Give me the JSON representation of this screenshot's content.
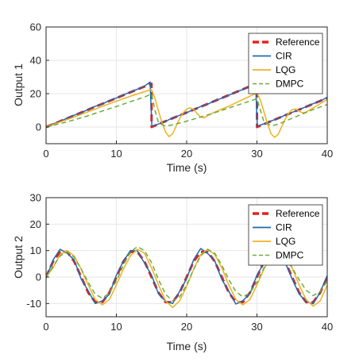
{
  "colors": {
    "Reference": "#e8201c",
    "CIR": "#1f68b0",
    "LQG": "#eeb220",
    "DMPC": "#6cad3c",
    "axis": "#262626",
    "grid": "#e6e6e6"
  },
  "chart_data": [
    {
      "type": "line",
      "xlabel": "Time (s)",
      "ylabel": "Output 1",
      "xlim": [
        0,
        40
      ],
      "ylim": [
        -10,
        60
      ],
      "xticks": [
        0,
        10,
        20,
        30,
        40
      ],
      "yticks": [
        0,
        20,
        40,
        60
      ],
      "grid": true,
      "legend_position": "top-right",
      "legend": [
        "Reference",
        "CIR",
        "LQG",
        "DMPC"
      ],
      "series": [
        {
          "name": "Reference",
          "style": "dashed-thick",
          "x": [
            0,
            1,
            3,
            5,
            7,
            9,
            11,
            13,
            15,
            15.01,
            17,
            19,
            21,
            23,
            25,
            27,
            29,
            30,
            30.01,
            32,
            34,
            36,
            38,
            40
          ],
          "y": [
            0,
            1.7,
            5.2,
            8.7,
            12.2,
            15.6,
            19.1,
            22.6,
            26,
            0,
            3.5,
            7,
            10.4,
            13.9,
            17.4,
            20.9,
            24.4,
            26,
            0,
            3.5,
            7,
            10.4,
            13.9,
            17.4
          ]
        },
        {
          "name": "CIR",
          "style": "solid",
          "x": [
            0,
            1,
            2,
            3,
            4,
            5,
            6,
            7,
            8,
            9,
            10,
            11,
            12,
            13,
            14,
            14.8,
            15.05,
            16,
            17,
            18,
            19,
            20,
            21,
            22,
            23,
            24,
            25,
            26,
            27,
            28,
            29,
            29.8,
            30.05,
            31,
            32,
            33,
            34,
            35,
            36,
            37,
            38,
            39,
            40
          ],
          "y": [
            0,
            1.9,
            3.3,
            5.4,
            7.1,
            8.5,
            10.6,
            12.4,
            13.8,
            15.9,
            17.4,
            19.3,
            21,
            22.7,
            24.5,
            27,
            0.5,
            1.8,
            3.4,
            5.5,
            7,
            8.6,
            10.5,
            12.3,
            13.7,
            15.8,
            17.3,
            19.1,
            21,
            22.5,
            24.6,
            26.5,
            0.5,
            1.9,
            3.6,
            5.2,
            7.1,
            8.8,
            10.4,
            12.2,
            14,
            15.6,
            17.8
          ]
        },
        {
          "name": "LQG",
          "style": "solid",
          "x": [
            0,
            2,
            4,
            6,
            8,
            10,
            12,
            14,
            15,
            15.5,
            16,
            16.5,
            17,
            17.5,
            18,
            18.5,
            19,
            19.5,
            20,
            20.5,
            21,
            21.5,
            22,
            22.5,
            23,
            24,
            26,
            28,
            29,
            30,
            30.5,
            31,
            31.5,
            32,
            32.5,
            33,
            33.5,
            34,
            34.5,
            35,
            35.5,
            36,
            36.5,
            37,
            38,
            39,
            40
          ],
          "y": [
            0,
            3,
            6,
            9.2,
            12.4,
            15.5,
            18.5,
            21.2,
            22.5,
            17,
            9.5,
            2.5,
            -3,
            -5.8,
            -4,
            0.5,
            5,
            8.5,
            10.8,
            11.5,
            10.5,
            8,
            6,
            5.5,
            6.8,
            9,
            12.5,
            16.5,
            18.5,
            20.5,
            16,
            9,
            2,
            -4,
            -6.2,
            -4.5,
            0,
            4.5,
            8.2,
            10.5,
            10.8,
            9.5,
            8.5,
            9,
            11.5,
            14,
            16.5
          ]
        },
        {
          "name": "DMPC",
          "style": "dashed",
          "x": [
            0,
            2,
            4,
            6,
            8,
            10,
            12,
            14,
            15,
            15.5,
            16,
            17,
            18,
            20,
            22,
            24,
            26,
            28,
            30,
            30.5,
            31,
            32,
            33,
            34,
            36,
            38,
            40
          ],
          "y": [
            0,
            2,
            4.3,
            6.8,
            9.6,
            12.3,
            15.2,
            18,
            19.8,
            10,
            2.5,
            0.5,
            1.3,
            3.5,
            6,
            8.6,
            11.4,
            14.2,
            17,
            10,
            3,
            0.8,
            1.5,
            3.5,
            7,
            10.5,
            13.5
          ]
        }
      ]
    },
    {
      "type": "line",
      "xlabel": "Time (s)",
      "ylabel": "Output 2",
      "xlim": [
        0,
        40
      ],
      "ylim": [
        -15,
        30
      ],
      "xticks": [
        0,
        10,
        20,
        30,
        40
      ],
      "yticks": [
        -10,
        0,
        10,
        20,
        30
      ],
      "grid": true,
      "legend_position": "top-right",
      "legend": [
        "Reference",
        "CIR",
        "LQG",
        "DMPC"
      ],
      "series": [
        {
          "name": "Reference",
          "style": "dashed-thick",
          "x": [
            0,
            1,
            2,
            3,
            4,
            5,
            6,
            7,
            8,
            9,
            10,
            11,
            12,
            13,
            14,
            15,
            16,
            17,
            18,
            19,
            20,
            21,
            22,
            23,
            24,
            25,
            26,
            27,
            28,
            29,
            30,
            31,
            32,
            33,
            34,
            35,
            36,
            37,
            38,
            39,
            40
          ],
          "y": [
            0,
            5.9,
            9.5,
            9.5,
            5.9,
            0,
            -5.9,
            -9.5,
            -9.5,
            -5.9,
            0,
            5.9,
            9.5,
            9.5,
            5.9,
            0,
            -5.9,
            -9.5,
            -9.5,
            -5.9,
            0,
            5.9,
            9.5,
            9.5,
            5.9,
            0,
            -5.9,
            -9.5,
            -9.5,
            -5.9,
            0,
            5.9,
            9.5,
            9.5,
            5.9,
            0,
            -5.9,
            -9.5,
            -9.5,
            -5.9,
            0
          ]
        },
        {
          "name": "CIR",
          "style": "solid",
          "x": [
            0,
            1,
            2,
            3,
            4,
            5,
            6,
            7,
            8,
            9,
            10,
            11,
            12,
            13,
            14,
            15,
            16,
            17,
            18,
            19,
            20,
            21,
            22,
            23,
            24,
            25,
            26,
            27,
            28,
            29,
            30,
            31,
            32,
            33,
            34,
            35,
            36,
            37,
            38,
            39,
            40
          ],
          "y": [
            -0.5,
            6.5,
            10.5,
            9,
            6.5,
            -0.8,
            -5.2,
            -10,
            -9,
            -6.5,
            0.7,
            6,
            10,
            9.9,
            5.3,
            0.8,
            -6.4,
            -9.1,
            -10,
            -5.4,
            -0.6,
            6.6,
            10.8,
            8.9,
            6.1,
            -0.9,
            -5.4,
            -10.2,
            -8.9,
            -6.3,
            0.8,
            5.3,
            9.2,
            10.3,
            5.6,
            -0.7,
            -6.4,
            -9.3,
            -10.1,
            -5.7,
            0.6
          ]
        },
        {
          "name": "LQG",
          "style": "solid",
          "x": [
            0,
            1,
            2,
            3,
            4,
            5,
            6,
            7,
            8,
            9,
            10,
            11,
            12,
            13,
            14,
            15,
            16,
            17,
            18,
            19,
            20,
            21,
            22,
            23,
            24,
            25,
            26,
            27,
            28,
            29,
            30,
            31,
            32,
            33,
            34,
            35,
            36,
            37,
            38,
            39,
            40
          ],
          "y": [
            0,
            3.5,
            8.5,
            10,
            8,
            3,
            -3,
            -8.5,
            -10.5,
            -8.5,
            -3,
            3,
            8,
            10.5,
            9,
            3.5,
            -3,
            -9,
            -11.5,
            -9,
            -3.5,
            3,
            8.5,
            10.5,
            8.5,
            3.5,
            -3,
            -8.5,
            -10.5,
            -8.5,
            -3,
            3,
            8,
            10.5,
            9,
            3.5,
            -3,
            -8.5,
            -11,
            -9,
            -3
          ]
        },
        {
          "name": "DMPC",
          "style": "dashed",
          "x": [
            0,
            1,
            2,
            3,
            4,
            5,
            6,
            7,
            8,
            9,
            10,
            11,
            12,
            13,
            14,
            15,
            16,
            17,
            18,
            19,
            20,
            21,
            22,
            23,
            24,
            25,
            26,
            27,
            28,
            29,
            30,
            31,
            32,
            33,
            34,
            35,
            36,
            37,
            38,
            39,
            40
          ],
          "y": [
            0,
            4,
            8,
            9.5,
            7.5,
            3,
            -2,
            -6.5,
            -8,
            -6,
            -1.5,
            4.5,
            9.5,
            11.5,
            10,
            5.5,
            -1,
            -6.5,
            -9,
            -7.5,
            -3,
            3,
            8,
            10.5,
            9,
            4.5,
            -1,
            -5.5,
            -7.5,
            -6,
            -2,
            3.5,
            7.5,
            9,
            7.5,
            3.5,
            -1,
            -5,
            -7,
            -5.5,
            -1.5
          ]
        }
      ]
    }
  ]
}
